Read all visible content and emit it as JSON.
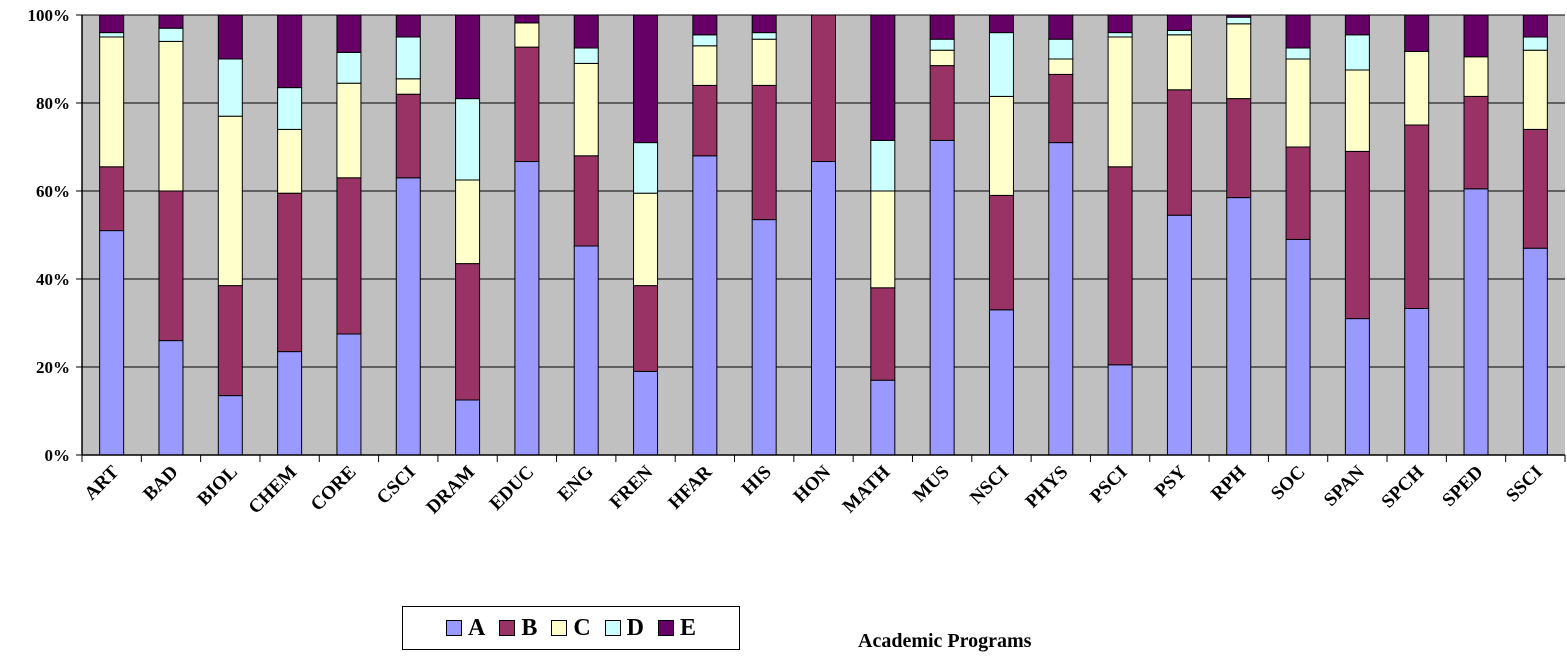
{
  "chart_data": {
    "type": "bar",
    "stacked": "percent",
    "xlabel": "Academic Programs",
    "ylabel": "",
    "ylim": [
      0,
      100
    ],
    "yticks": [
      "0%",
      "20%",
      "40%",
      "60%",
      "80%",
      "100%"
    ],
    "grid": true,
    "legend_position": "bottom",
    "categories": [
      "ART",
      "BAD",
      "BIOL",
      "CHEM",
      "CORE",
      "CSCI",
      "DRAM",
      "EDUC",
      "ENG",
      "FREN",
      "HFAR",
      "HIS",
      "HON",
      "MATH",
      "MUS",
      "NSCI",
      "PHYS",
      "PSCI",
      "PSY",
      "RPH",
      "SOC",
      "SPAN",
      "SPCH",
      "SPED",
      "SSCI"
    ],
    "series": [
      {
        "name": "A",
        "color": "#9999ff",
        "values": [
          51,
          26,
          13.5,
          23.5,
          27.5,
          63,
          12.5,
          66.7,
          47.5,
          19,
          68,
          53.5,
          66.7,
          17,
          71.5,
          33,
          71,
          20.5,
          54.5,
          58.5,
          49,
          31,
          33.3,
          60.5,
          47
        ]
      },
      {
        "name": "B",
        "color": "#993366",
        "values": [
          14.5,
          34,
          25,
          36,
          35.5,
          19,
          31,
          26,
          20.5,
          19.5,
          16,
          30.5,
          33.3,
          21,
          17,
          26,
          15.5,
          45,
          28.5,
          22.5,
          21,
          38,
          41.7,
          21,
          27
        ]
      },
      {
        "name": "C",
        "color": "#ffffcc",
        "values": [
          29.5,
          34,
          38.5,
          14.5,
          21.5,
          3.5,
          19,
          5.5,
          21,
          21,
          9,
          10.5,
          0,
          22,
          3.5,
          22.5,
          3.5,
          29.5,
          12.5,
          17,
          20,
          18.5,
          16.7,
          9,
          18
        ]
      },
      {
        "name": "D",
        "color": "#ccffff",
        "values": [
          1,
          3,
          13,
          9.5,
          7,
          9.5,
          18.5,
          0,
          3.5,
          11.5,
          2.5,
          1.5,
          0,
          11.5,
          2.5,
          14.5,
          4.5,
          1,
          1,
          1.5,
          2.5,
          8,
          0,
          0,
          3
        ]
      },
      {
        "name": "E",
        "color": "#660066",
        "values": [
          4,
          3,
          10,
          16.5,
          8.5,
          5,
          19,
          1.8,
          7.5,
          29,
          4.5,
          4,
          0,
          28.5,
          5.5,
          4,
          5.5,
          4,
          3.5,
          0.5,
          7.5,
          4.5,
          8.3,
          9.5,
          5
        ]
      }
    ]
  }
}
